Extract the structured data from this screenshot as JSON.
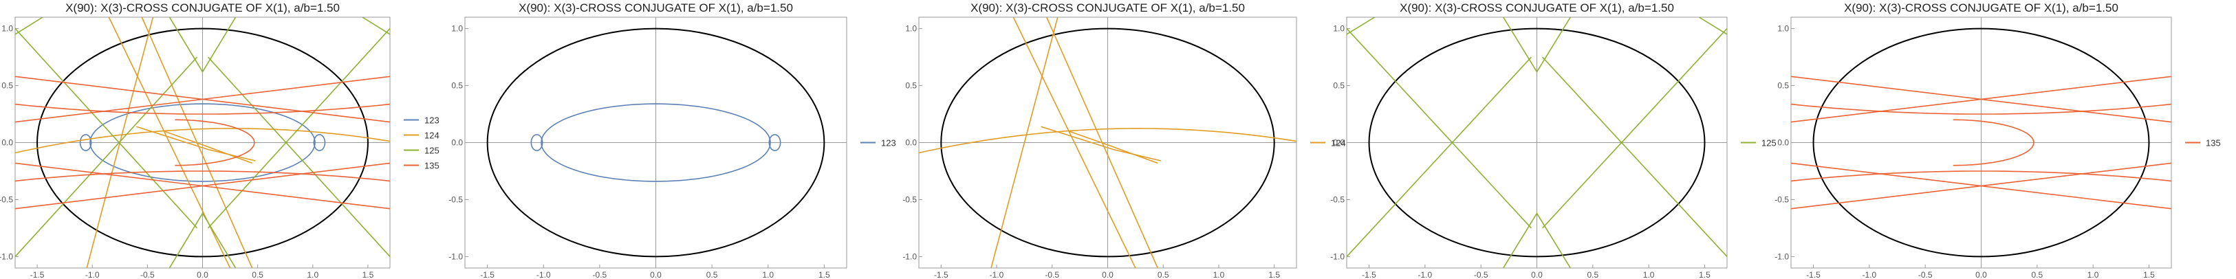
{
  "chart_data": [
    {
      "type": "line",
      "title": "X(90): X(3)-CROSS CONJUGATE OF X(1), a/b=1.50",
      "xlim": [
        -1.7,
        1.7
      ],
      "ylim": [
        -1.1,
        1.1
      ],
      "xticks": [
        -1.5,
        -1.0,
        -0.5,
        0.0,
        0.5,
        1.0,
        1.5
      ],
      "xtick_labels": [
        "-1.5",
        "-1.0",
        "-0.5",
        "0.0",
        "0.5",
        "1.0",
        "1.5"
      ],
      "yticks": [
        -1.0,
        -0.5,
        0.0,
        0.5,
        1.0
      ],
      "ytick_labels": [
        "-1.0",
        "-0.5",
        "0.0",
        "0.5",
        "1.0"
      ],
      "ellipse": {
        "a": 1.5,
        "b": 1.0,
        "color": "#000000"
      },
      "legend_position": "right",
      "series": [
        {
          "name": "123",
          "color": "#5e81b5"
        },
        {
          "name": "124",
          "color": "#e19c24"
        },
        {
          "name": "125",
          "color": "#8fb032"
        },
        {
          "name": "135",
          "color": "#eb6235"
        }
      ]
    },
    {
      "type": "line",
      "title": "X(90): X(3)-CROSS CONJUGATE OF X(1), a/b=1.50",
      "xlim": [
        -1.7,
        1.7
      ],
      "ylim": [
        -1.1,
        1.1
      ],
      "xticks": [
        -1.5,
        -1.0,
        -0.5,
        0.0,
        0.5,
        1.0,
        1.5
      ],
      "xtick_labels": [
        "-1.5",
        "-1.0",
        "-0.5",
        "0.0",
        "0.5",
        "1.0",
        "1.5"
      ],
      "yticks": [
        -1.0,
        -0.5,
        0.0,
        0.5,
        1.0
      ],
      "ytick_labels": [
        "-1.0",
        "-0.5",
        "0.0",
        "0.5",
        "1.0"
      ],
      "ellipse": {
        "a": 1.5,
        "b": 1.0,
        "color": "#000000"
      },
      "legend_position": "right",
      "series": [
        {
          "name": "123",
          "color": "#5e81b5"
        }
      ]
    },
    {
      "type": "line",
      "title": "X(90): X(3)-CROSS CONJUGATE OF X(1), a/b=1.50",
      "xlim": [
        -1.7,
        1.7
      ],
      "ylim": [
        -1.1,
        1.1
      ],
      "xticks": [
        -1.5,
        -1.0,
        -0.5,
        0.0,
        0.5,
        1.0,
        1.5
      ],
      "xtick_labels": [
        "-1.5",
        "-1.0",
        "-0.5",
        "0.0",
        "0.5",
        "1.0",
        "1.5"
      ],
      "yticks": [
        -1.0,
        -0.5,
        0.0,
        0.5,
        1.0
      ],
      "ytick_labels": [
        "-1.0",
        "-0.5",
        "0.0",
        "0.5",
        "1.0"
      ],
      "ellipse": {
        "a": 1.5,
        "b": 1.0,
        "color": "#000000"
      },
      "legend_position": "right",
      "series": [
        {
          "name": "124",
          "color": "#e19c24"
        }
      ]
    },
    {
      "type": "line",
      "title": "X(90): X(3)-CROSS CONJUGATE OF X(1), a/b=1.50",
      "xlim": [
        -1.7,
        1.7
      ],
      "ylim": [
        -1.1,
        1.1
      ],
      "xticks": [
        -1.5,
        -1.0,
        -0.5,
        0.0,
        0.5,
        1.0,
        1.5
      ],
      "xtick_labels": [
        "-1.5",
        "-1.0",
        "-0.5",
        "0.0",
        "0.5",
        "1.0",
        "1.5"
      ],
      "yticks": [
        -1.0,
        -0.5,
        0.0,
        0.5,
        1.0
      ],
      "ytick_labels": [
        "-1.0",
        "-0.5",
        "0.0",
        "0.5",
        "1.0"
      ],
      "ellipse": {
        "a": 1.5,
        "b": 1.0,
        "color": "#000000"
      },
      "legend_position": "right",
      "series": [
        {
          "name": "125",
          "color": "#8fb032"
        }
      ]
    },
    {
      "type": "line",
      "title": "X(90): X(3)-CROSS CONJUGATE OF X(1), a/b=1.50",
      "xlim": [
        -1.7,
        1.7
      ],
      "ylim": [
        -1.1,
        1.1
      ],
      "xticks": [
        -1.5,
        -1.0,
        -0.5,
        0.0,
        0.5,
        1.0,
        1.5
      ],
      "xtick_labels": [
        "-1.5",
        "-1.0",
        "-0.5",
        "0.0",
        "0.5",
        "1.0",
        "1.5"
      ],
      "yticks": [
        -1.0,
        -0.5,
        0.0,
        0.5,
        1.0
      ],
      "ytick_labels": [
        "-1.0",
        "-0.5",
        "0.0",
        "0.5",
        "1.0"
      ],
      "ellipse": {
        "a": 1.5,
        "b": 1.0,
        "color": "#000000"
      },
      "legend_position": "right",
      "series": [
        {
          "name": "135",
          "color": "#eb6235"
        }
      ]
    }
  ]
}
